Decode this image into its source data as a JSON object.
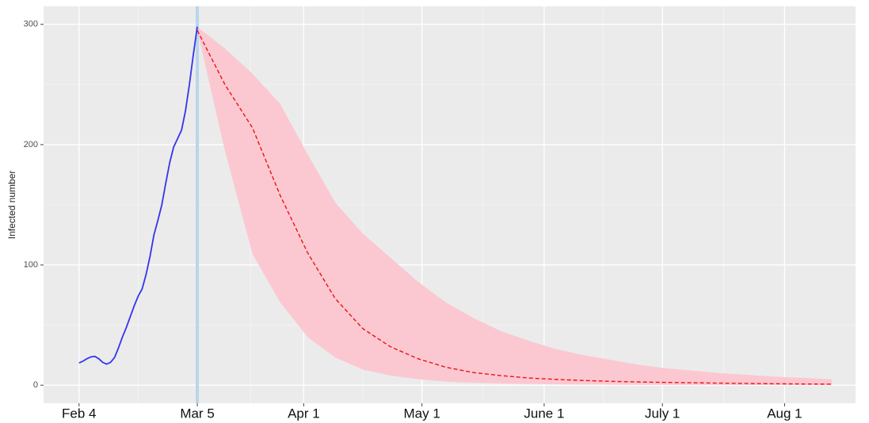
{
  "chart_data": {
    "type": "line",
    "y_label": "Infected number",
    "xlim": [
      "Jan 26",
      "Aug 19"
    ],
    "xticks": [
      "Feb 4",
      "Mar 5",
      "Apr 1",
      "May 1",
      "June 1",
      "July 1",
      "Aug 1"
    ],
    "ylim": [
      -15,
      315
    ],
    "yticks": [
      0,
      100,
      200,
      300
    ],
    "grid": true,
    "vline": {
      "x": "Mar 5",
      "color": "#b8d6ea"
    },
    "band": {
      "color": "#fbc8d1",
      "x": [
        "Mar 5",
        "Mar 12",
        "Mar 19",
        "Mar 26",
        "Apr 2",
        "Apr 9",
        "Apr 16",
        "Apr 23",
        "Apr 30",
        "May 7",
        "May 14",
        "May 21",
        "May 28",
        "Jun 4",
        "Jun 11",
        "Jun 18",
        "Jun 25",
        "Jul 2",
        "Jul 9",
        "Jul 16",
        "Jul 23",
        "Jul 30",
        "Aug 6",
        "Aug 13"
      ],
      "upper": [
        298,
        280,
        259,
        234,
        192,
        152,
        126,
        106,
        86,
        69,
        56,
        45,
        37,
        30,
        25,
        21,
        17,
        14,
        12,
        10,
        8.5,
        7,
        6,
        5
      ],
      "lower": [
        295,
        195,
        109,
        69,
        40,
        23,
        13,
        8,
        5,
        3,
        2,
        1.4,
        1,
        0.7,
        0.5,
        0.4,
        0.3,
        0.2,
        0.15,
        0.1,
        0.1,
        0.1,
        0.1,
        0.1
      ]
    },
    "series": [
      {
        "color": "#3333ee",
        "dash": false,
        "x": [
          "Feb 4",
          "Feb 5",
          "Feb 6",
          "Feb 7",
          "Feb 8",
          "Feb 9",
          "Feb 10",
          "Feb 11",
          "Feb 12",
          "Feb 13",
          "Feb 14",
          "Feb 15",
          "Feb 16",
          "Feb 17",
          "Feb 18",
          "Feb 19",
          "Feb 20",
          "Feb 21",
          "Feb 22",
          "Feb 23",
          "Feb 24",
          "Feb 25",
          "Feb 26",
          "Feb 27",
          "Feb 28",
          "Feb 29",
          "Mar 1",
          "Mar 2",
          "Mar 3",
          "Mar 4",
          "Mar 5"
        ],
        "values": [
          18.5,
          20,
          22,
          23.5,
          24,
          22,
          19,
          17.5,
          19,
          23,
          31,
          40,
          48,
          57,
          66,
          74,
          80,
          92,
          107,
          125,
          137,
          150,
          168,
          185,
          198,
          205,
          212,
          228,
          250,
          275,
          298
        ]
      },
      {
        "color": "#ee1111",
        "dash": true,
        "x": [
          "Mar 5",
          "Mar 12",
          "Mar 19",
          "Mar 26",
          "Apr 2",
          "Apr 9",
          "Apr 16",
          "Apr 23",
          "Apr 30",
          "May 7",
          "May 14",
          "May 21",
          "May 28",
          "Jun 4",
          "Jun 11",
          "Jun 18",
          "Jun 25",
          "Jul 2",
          "Jul 9",
          "Jul 16",
          "Jul 23",
          "Jul 30",
          "Aug 6",
          "Aug 13"
        ],
        "values": [
          295,
          250,
          214,
          158,
          110,
          72,
          47,
          32,
          22,
          15,
          10.5,
          8,
          6,
          4.8,
          3.9,
          3.2,
          2.7,
          2.3,
          2,
          1.7,
          1.4,
          1.2,
          1,
          0.9
        ]
      }
    ]
  }
}
